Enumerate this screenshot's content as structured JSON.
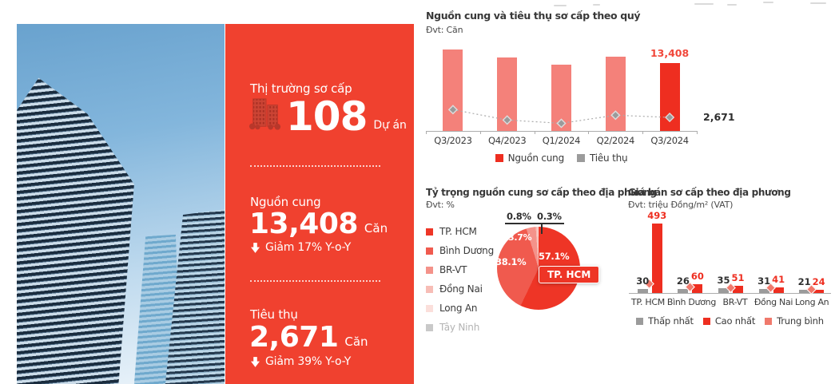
{
  "colors": {
    "panel_red": "#F0412F",
    "bar_pink": "#F4817A",
    "bar_red": "#EE2E20",
    "label_red": "#F1473A",
    "gray": "#9B9B9B",
    "salmon": "#F0796C",
    "dark_text": "#2F2F2F",
    "pie": [
      "#EE3526",
      "#F05A4E",
      "#F4928A",
      "#F7BDB6",
      "#FBDFDB",
      "#C9C9C9"
    ]
  },
  "panel": {
    "title": "Thị trường sơ cấp",
    "projects": {
      "value": "108",
      "unit": "Dự án",
      "icon": "buildings-icon"
    },
    "supply": {
      "label": "Nguồn cung",
      "value": "13,408",
      "unit": "Căn",
      "change": "Giảm 17% Y-o-Y",
      "direction": "down",
      "icon": "down-arrow-icon"
    },
    "absorption": {
      "label": "Tiêu thụ",
      "value": "2,671",
      "unit": "Căn",
      "change": "Giảm 39% Y-o-Y",
      "direction": "down",
      "icon": "down-arrow-icon"
    }
  },
  "chart_data": [
    {
      "id": "quarterly",
      "type": "bar",
      "title": "Nguồn cung và tiêu thụ sơ cấp theo quý",
      "unit_label": "Đvt: Căn",
      "categories": [
        "Q3/2023",
        "Q4/2023",
        "Q1/2024",
        "Q2/2024",
        "Q3/2024"
      ],
      "series": [
        {
          "name": "Nguồn cung",
          "type": "bar",
          "values": [
            16050,
            14550,
            13000,
            14700,
            13408
          ],
          "value_labels": [
            null,
            null,
            null,
            null,
            "13,408"
          ],
          "highlight_index": 4
        },
        {
          "name": "Tiêu thụ",
          "type": "line",
          "values": [
            4200,
            2150,
            1500,
            3100,
            2671
          ],
          "value_labels": [
            null,
            null,
            null,
            null,
            "2,671"
          ]
        }
      ],
      "ylim": [
        0,
        17000
      ],
      "legend": [
        "Nguồn cung",
        "Tiêu thụ"
      ],
      "legend_position": "bottom",
      "grid": false
    },
    {
      "id": "share",
      "type": "pie",
      "title": "Tỷ trọng nguồn cung sơ cấp theo địa phương",
      "unit_label": "Đvt: %",
      "labels": [
        "TP. HCM",
        "Bình Dương",
        "BR-VT",
        "Đồng Nai",
        "Long An",
        "Tây Ninh"
      ],
      "values": [
        57.1,
        38.1,
        3.7,
        0.8,
        0.3,
        0
      ],
      "labels_display": [
        "57.1%",
        "38.1%",
        "3.7%",
        "0.8%",
        "0.3%"
      ],
      "callout": "TP. HCM",
      "legend_position": "left"
    },
    {
      "id": "price",
      "type": "bar",
      "title": "Giá bán sơ cấp theo địa phương",
      "unit_label": "Đvt: triệu Đồng/m² (VAT)",
      "categories": [
        "TP. HCM",
        "Bình Dương",
        "BR-VT",
        "Đồng Nai",
        "Long An"
      ],
      "series": [
        {
          "name": "Thấp nhất",
          "type": "bar",
          "values": [
            30,
            26,
            35,
            31,
            21
          ],
          "value_labels": [
            "30",
            "26",
            "35",
            "31",
            "21"
          ]
        },
        {
          "name": "Cao nhất",
          "type": "bar",
          "values": [
            493,
            60,
            51,
            41,
            24
          ],
          "value_labels": [
            "493",
            "60",
            "51",
            "41",
            "24"
          ]
        },
        {
          "name": "Trung bình",
          "type": "marker",
          "values": [
            65,
            45,
            38,
            36,
            23
          ],
          "value_labels": [
            null,
            null,
            null,
            null,
            null
          ]
        }
      ],
      "ylim": [
        0,
        500
      ],
      "legend": [
        "Thấp nhất",
        "Cao nhất",
        "Trung bình"
      ],
      "legend_position": "bottom",
      "grid": false
    }
  ]
}
